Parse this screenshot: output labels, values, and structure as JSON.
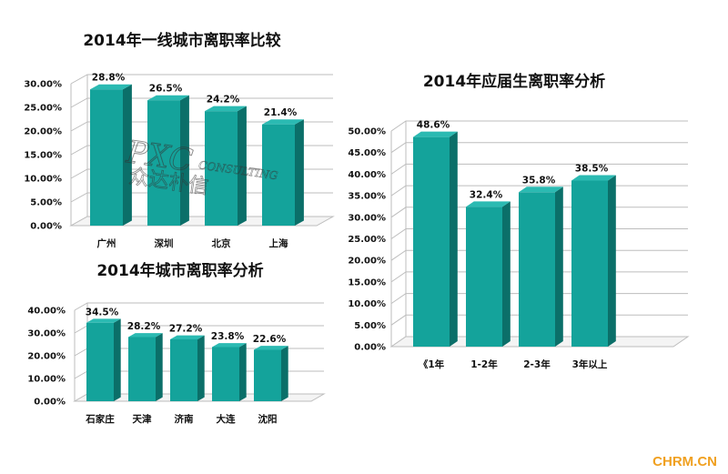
{
  "chart_data": [
    {
      "type": "bar",
      "title": "2014年一线城市离职率比较",
      "categories": [
        "广州",
        "深圳",
        "北京",
        "上海"
      ],
      "values": [
        28.8,
        26.5,
        24.2,
        21.4
      ],
      "value_labels": [
        "28.8%",
        "26.5%",
        "24.2%",
        "21.4%"
      ],
      "yticks": [
        "0.00%",
        "5.00%",
        "10.00%",
        "15.00%",
        "20.00%",
        "25.00%",
        "30.00%"
      ],
      "ylim": [
        0,
        30
      ],
      "grid": true,
      "legend": "none"
    },
    {
      "type": "bar",
      "title": "2014年城市离职率分析",
      "categories": [
        "石家庄",
        "天津",
        "济南",
        "大连",
        "沈阳"
      ],
      "values": [
        34.5,
        28.2,
        27.2,
        23.8,
        22.6
      ],
      "value_labels": [
        "34.5%",
        "28.2%",
        "27.2%",
        "23.8%",
        "22.6%"
      ],
      "yticks": [
        "0.00%",
        "10.00%",
        "20.00%",
        "30.00%",
        "40.00%"
      ],
      "ylim": [
        0,
        40
      ],
      "grid": true,
      "legend": "none"
    },
    {
      "type": "bar",
      "title": "2014年应届生离职率分析",
      "categories": [
        "《1年",
        "1-2年",
        "2-3年",
        "3年以上"
      ],
      "values": [
        48.6,
        32.4,
        35.8,
        38.5
      ],
      "value_labels": [
        "48.6%",
        "32.4%",
        "35.8%",
        "38.5%"
      ],
      "yticks": [
        "0.00%",
        "5.00%",
        "10.00%",
        "15.00%",
        "20.00%",
        "25.00%",
        "30.00%",
        "35.00%",
        "40.00%",
        "45.00%",
        "50.00%"
      ],
      "ylim": [
        0,
        50
      ],
      "grid": true,
      "legend": "none"
    }
  ],
  "watermark": {
    "main": "PXC",
    "sub": "CONSULTING",
    "cn": "众达朴信"
  },
  "site_mark": "CHRM.CN",
  "colors": {
    "bar_front": "#14a39b",
    "bar_side": "#0b6f69",
    "bar_top": "#2bbab2",
    "grid": "#bdbdbd",
    "site": "#f0a020"
  }
}
